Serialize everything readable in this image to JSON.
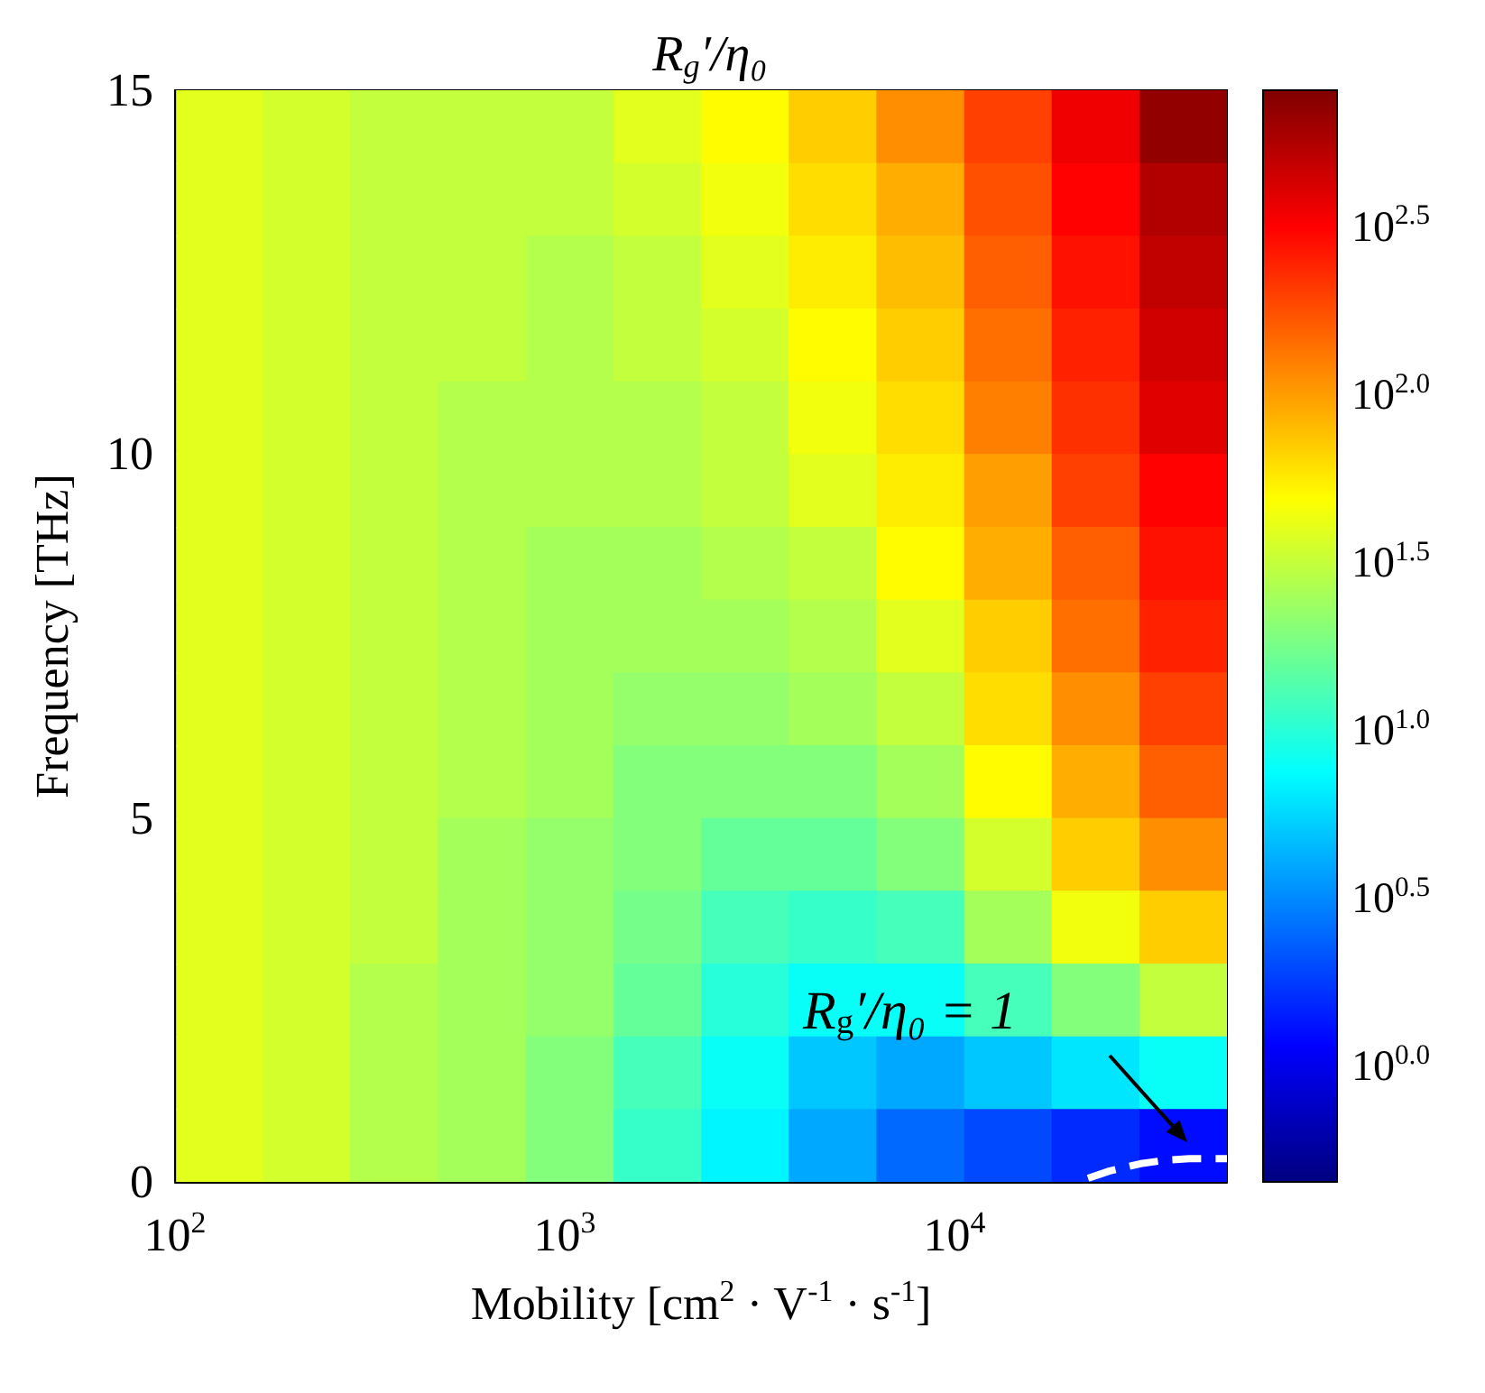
{
  "chart_data": {
    "type": "heatmap",
    "title": "R$_{g}$′/η₀",
    "xlabel": "Mobility [cm$^{2}$ · V$^{-1}$ · s$^{-1}$]",
    "ylabel": "Frequency [THz]",
    "x": [
      130,
      217,
      365,
      612,
      1030,
      1730,
      2900,
      4860,
      8170,
      13700,
      23000,
      38600
    ],
    "y": [
      14.5,
      13.5,
      12.5,
      11.5,
      10.5,
      9.5,
      8.5,
      7.5,
      6.5,
      5.5,
      4.5,
      3.5,
      2.5,
      1.5,
      0.5
    ],
    "cells": [
      [
        1.6,
        1.55,
        1.5,
        1.5,
        1.5,
        1.6,
        1.7,
        1.85,
        2.05,
        2.3,
        2.55,
        2.85
      ],
      [
        1.6,
        1.55,
        1.5,
        1.5,
        1.5,
        1.55,
        1.65,
        1.8,
        1.95,
        2.25,
        2.5,
        2.75
      ],
      [
        1.6,
        1.55,
        1.5,
        1.5,
        1.45,
        1.5,
        1.6,
        1.75,
        1.9,
        2.2,
        2.45,
        2.7
      ],
      [
        1.6,
        1.55,
        1.5,
        1.5,
        1.45,
        1.5,
        1.55,
        1.7,
        1.85,
        2.15,
        2.4,
        2.65
      ],
      [
        1.6,
        1.55,
        1.5,
        1.45,
        1.45,
        1.45,
        1.5,
        1.65,
        1.8,
        2.1,
        2.35,
        2.6
      ],
      [
        1.6,
        1.55,
        1.5,
        1.45,
        1.45,
        1.45,
        1.5,
        1.6,
        1.75,
        2.0,
        2.3,
        2.5
      ],
      [
        1.6,
        1.55,
        1.5,
        1.45,
        1.4,
        1.4,
        1.45,
        1.5,
        1.7,
        1.95,
        2.2,
        2.45
      ],
      [
        1.6,
        1.55,
        1.5,
        1.45,
        1.4,
        1.4,
        1.4,
        1.45,
        1.6,
        1.85,
        2.15,
        2.4
      ],
      [
        1.6,
        1.55,
        1.5,
        1.45,
        1.4,
        1.35,
        1.35,
        1.4,
        1.5,
        1.8,
        2.05,
        2.3
      ],
      [
        1.6,
        1.55,
        1.5,
        1.45,
        1.4,
        1.3,
        1.3,
        1.3,
        1.4,
        1.7,
        1.95,
        2.2
      ],
      [
        1.6,
        1.55,
        1.5,
        1.4,
        1.35,
        1.3,
        1.2,
        1.2,
        1.3,
        1.55,
        1.85,
        2.05
      ],
      [
        1.6,
        1.55,
        1.5,
        1.4,
        1.35,
        1.25,
        1.1,
        1.05,
        1.1,
        1.4,
        1.65,
        1.85
      ],
      [
        1.6,
        1.55,
        1.45,
        1.4,
        1.35,
        1.2,
        1.0,
        0.9,
        0.9,
        1.1,
        1.3,
        1.5
      ],
      [
        1.6,
        1.55,
        1.45,
        1.4,
        1.3,
        1.1,
        0.9,
        0.7,
        0.6,
        0.7,
        0.8,
        0.9
      ],
      [
        1.6,
        1.55,
        1.45,
        1.4,
        1.3,
        1.05,
        0.85,
        0.6,
        0.4,
        0.3,
        0.2,
        0.1
      ]
    ],
    "series": [
      {
        "type": "line",
        "color": "#ffffff",
        "line_style": "dashed",
        "x": [
          22000,
          25000,
          30000,
          35000,
          40000,
          50000
        ],
        "values": [
          0.05,
          0.15,
          0.25,
          0.3,
          0.32,
          0.32
        ]
      }
    ],
    "xlim": [
      100,
      50000
    ],
    "xticks": [
      {
        "value": 100,
        "label": "10$^{2}$"
      },
      {
        "value": 1000,
        "label": "10$^{3}$"
      },
      {
        "value": 10000,
        "label": "10$^{4}$"
      }
    ],
    "ylim": [
      0,
      15
    ],
    "yticks": [
      0,
      5,
      10,
      15
    ],
    "log": "x",
    "clim": [
      -0.34,
      2.91
    ],
    "cticks": [
      {
        "value": 0,
        "label": "10$^{0.0}$"
      },
      {
        "value": 0.5,
        "label": "10$^{0.5}$"
      },
      {
        "value": 1,
        "label": "10$^{1.0}$"
      },
      {
        "value": 1.5,
        "label": "10$^{1.5}$"
      },
      {
        "value": 2,
        "label": "10$^{2.0}$"
      },
      {
        "value": 2.5,
        "label": "10$^{2.5}$"
      }
    ],
    "annotations": [
      "R$_{g}$′/η₀ = 1"
    ]
  }
}
